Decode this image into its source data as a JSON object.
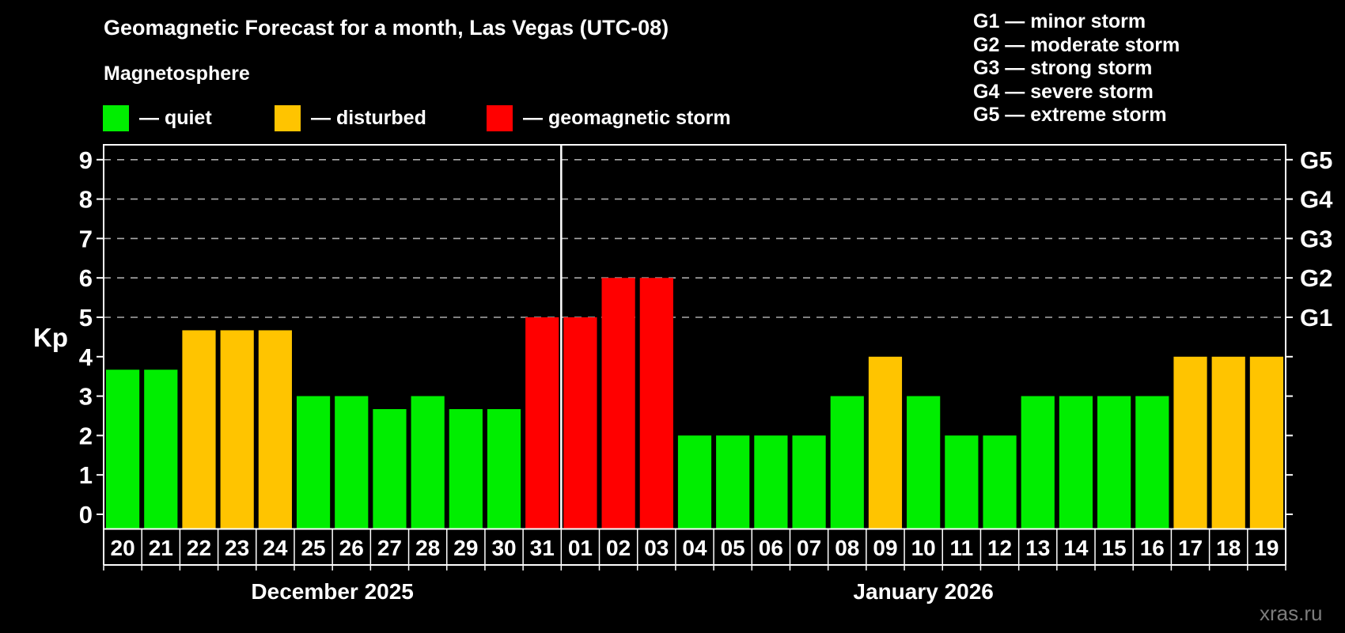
{
  "watermark": "xras.ru",
  "colors": {
    "background": "#000000",
    "axis": "#ffffff",
    "text": "#ffffff",
    "grid": "#aaaaaa",
    "watermark": "#7d7d7d"
  },
  "chart_data": {
    "type": "bar",
    "title": "Geomagnetic Forecast for a month, Las Vegas (UTC-08)",
    "subtitle": "Magnetosphere",
    "legend": [
      {
        "key": "quiet",
        "label": "— quiet",
        "color": "#00ee00"
      },
      {
        "key": "disturbed",
        "label": "— disturbed",
        "color": "#ffc400"
      },
      {
        "key": "storm",
        "label": "— geomagnetic storm",
        "color": "#ff0000"
      }
    ],
    "g_scale_legend": [
      "G1 — minor storm",
      "G2 — moderate storm",
      "G3 — strong storm",
      "G4 — severe storm",
      "G5 — extreme storm"
    ],
    "ylabel": "Kp",
    "ylim": [
      0,
      9
    ],
    "yticks": [
      0,
      1,
      2,
      3,
      4,
      5,
      6,
      7,
      8,
      9
    ],
    "gridlines": [
      5,
      6,
      7,
      8,
      9
    ],
    "grid_on": true,
    "legend_position": "top",
    "right_axis_labels": [
      {
        "kp": 5,
        "label": "G1"
      },
      {
        "kp": 6,
        "label": "G2"
      },
      {
        "kp": 7,
        "label": "G3"
      },
      {
        "kp": 8,
        "label": "G4"
      },
      {
        "kp": 9,
        "label": "G5"
      }
    ],
    "months": [
      {
        "label": "December 2025",
        "days": [
          {
            "day": "20",
            "kp": 3.67,
            "status": "quiet"
          },
          {
            "day": "21",
            "kp": 3.67,
            "status": "quiet"
          },
          {
            "day": "22",
            "kp": 4.67,
            "status": "disturbed"
          },
          {
            "day": "23",
            "kp": 4.67,
            "status": "disturbed"
          },
          {
            "day": "24",
            "kp": 4.67,
            "status": "disturbed"
          },
          {
            "day": "25",
            "kp": 3,
            "status": "quiet"
          },
          {
            "day": "26",
            "kp": 3,
            "status": "quiet"
          },
          {
            "day": "27",
            "kp": 2.67,
            "status": "quiet"
          },
          {
            "day": "28",
            "kp": 3,
            "status": "quiet"
          },
          {
            "day": "29",
            "kp": 2.67,
            "status": "quiet"
          },
          {
            "day": "30",
            "kp": 2.67,
            "status": "quiet"
          },
          {
            "day": "31",
            "kp": 5,
            "status": "storm"
          }
        ]
      },
      {
        "label": "January 2026",
        "days": [
          {
            "day": "01",
            "kp": 5,
            "status": "storm"
          },
          {
            "day": "02",
            "kp": 6,
            "status": "storm"
          },
          {
            "day": "03",
            "kp": 6,
            "status": "storm"
          },
          {
            "day": "04",
            "kp": 2,
            "status": "quiet"
          },
          {
            "day": "05",
            "kp": 2,
            "status": "quiet"
          },
          {
            "day": "06",
            "kp": 2,
            "status": "quiet"
          },
          {
            "day": "07",
            "kp": 2,
            "status": "quiet"
          },
          {
            "day": "08",
            "kp": 3,
            "status": "quiet"
          },
          {
            "day": "09",
            "kp": 4,
            "status": "disturbed"
          },
          {
            "day": "10",
            "kp": 3,
            "status": "quiet"
          },
          {
            "day": "11",
            "kp": 2,
            "status": "quiet"
          },
          {
            "day": "12",
            "kp": 2,
            "status": "quiet"
          },
          {
            "day": "13",
            "kp": 3,
            "status": "quiet"
          },
          {
            "day": "14",
            "kp": 3,
            "status": "quiet"
          },
          {
            "day": "15",
            "kp": 3,
            "status": "quiet"
          },
          {
            "day": "16",
            "kp": 3,
            "status": "quiet"
          },
          {
            "day": "17",
            "kp": 4,
            "status": "disturbed"
          },
          {
            "day": "18",
            "kp": 4,
            "status": "disturbed"
          },
          {
            "day": "19",
            "kp": 4,
            "status": "disturbed"
          }
        ]
      }
    ]
  }
}
